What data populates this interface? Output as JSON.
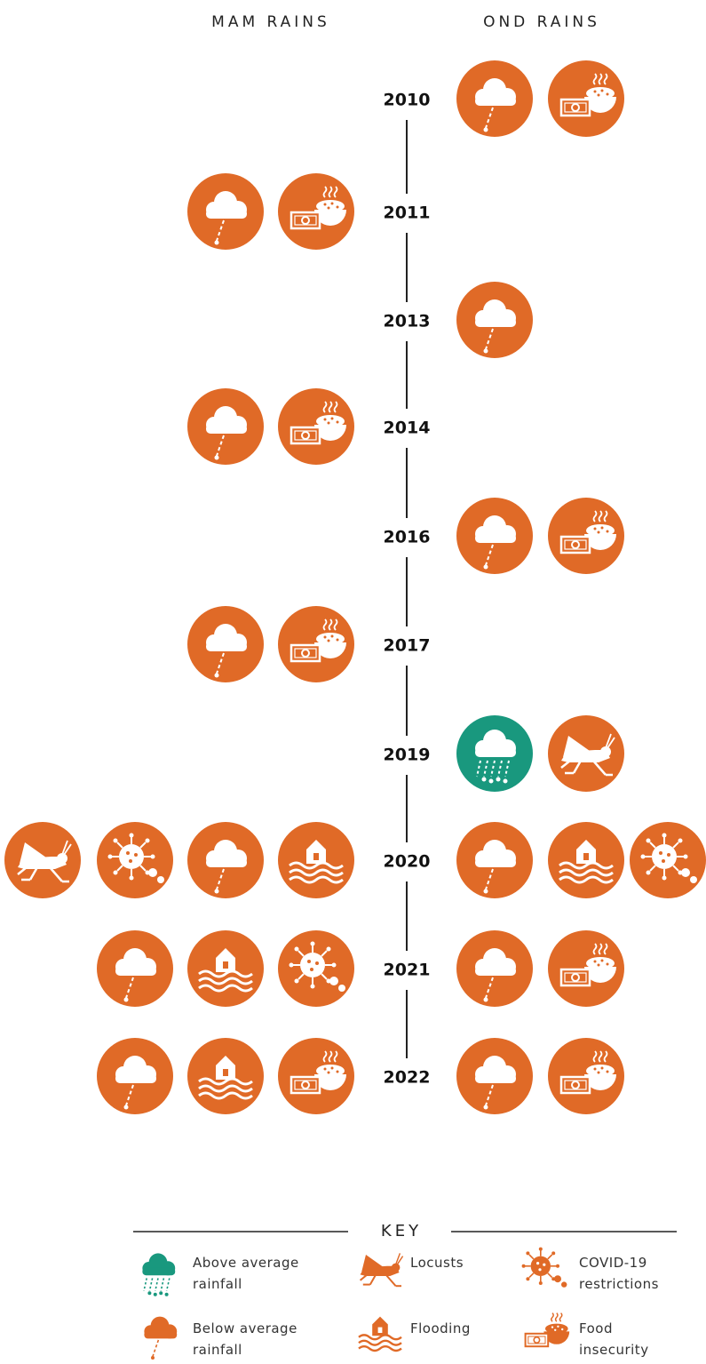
{
  "headers": {
    "mam": "MAM RAINS",
    "ond": "OND RAINS"
  },
  "years": [
    "2010",
    "2011",
    "2013",
    "2014",
    "2016",
    "2017",
    "2019",
    "2020",
    "2021",
    "2022"
  ],
  "key": {
    "title": "KEY",
    "items": [
      {
        "lines": [
          "Above average",
          "rainfall"
        ]
      },
      {
        "lines": [
          "Locusts"
        ]
      },
      {
        "lines": [
          "COVID-19",
          "restrictions"
        ]
      },
      {
        "lines": [
          "Below average",
          "rainfall"
        ]
      },
      {
        "lines": [
          "Flooding"
        ]
      },
      {
        "lines": [
          "Food",
          "insecurity"
        ]
      }
    ]
  }
}
